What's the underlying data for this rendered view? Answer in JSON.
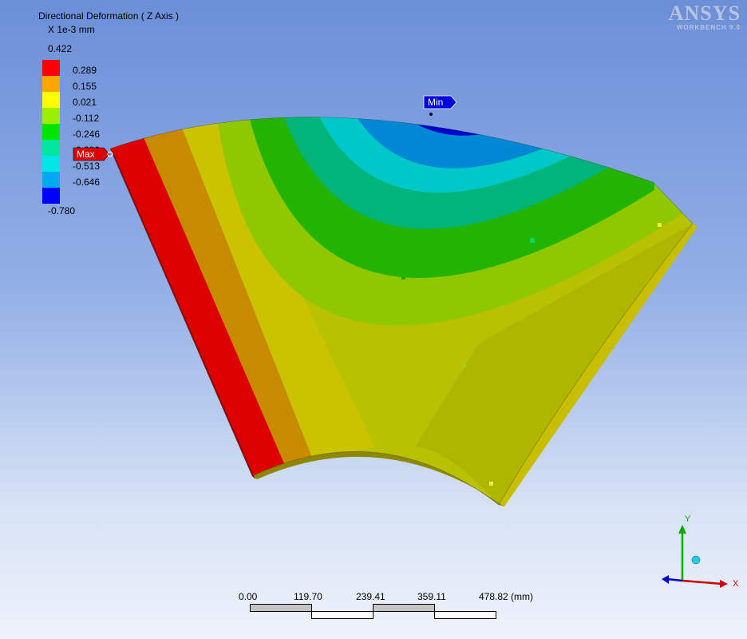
{
  "result": {
    "title": "Directional Deformation ( Z Axis )",
    "unit": "X 1e-3 mm"
  },
  "legend": {
    "max_value": "0.422",
    "min_value": "-0.780",
    "ticks": [
      "0.289",
      "0.155",
      "0.021",
      "-0.112",
      "-0.246",
      "-0.380",
      "-0.513",
      "-0.646"
    ],
    "colors": [
      "#ff0000",
      "#ffa500",
      "#ffff00",
      "#9bf000",
      "#00e400",
      "#00e6a0",
      "#00e6e6",
      "#00a8f0",
      "#0000ff"
    ]
  },
  "probes": {
    "max_label": "Max",
    "min_label": "Min"
  },
  "branding": {
    "logo": "ANSYS",
    "product": "WORKBENCH 9.0"
  },
  "scale_bar": {
    "labels": [
      "0.00",
      "119.70",
      "239.41",
      "359.11",
      "478.82 (mm)"
    ]
  },
  "triad": {
    "x_label": "X",
    "y_label": "Y"
  }
}
